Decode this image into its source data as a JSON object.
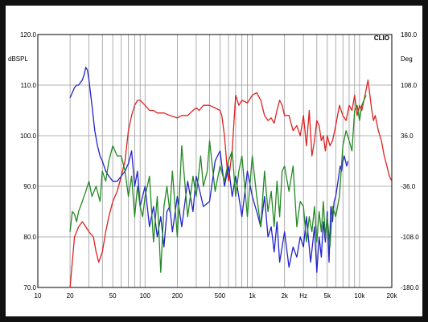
{
  "chart_data": {
    "type": "line",
    "title": "",
    "brand": "CLIO",
    "xlabel": "Hz",
    "ylabel_left": "dBSPL",
    "ylabel_right": "Deg",
    "x_scale": "log",
    "xlim": [
      10,
      20000
    ],
    "ylim_left": [
      70,
      120
    ],
    "ylim_right": [
      -180,
      180
    ],
    "x_tick_labels": [
      {
        "value": 10,
        "label": "10"
      },
      {
        "value": 20,
        "label": "20"
      },
      {
        "value": 50,
        "label": "50"
      },
      {
        "value": 100,
        "label": "100"
      },
      {
        "value": 200,
        "label": "200"
      },
      {
        "value": 500,
        "label": "500"
      },
      {
        "value": 1000,
        "label": "1k"
      },
      {
        "value": 2000,
        "label": "2k"
      },
      {
        "value": 5000,
        "label": "5k"
      },
      {
        "value": 10000,
        "label": "10k"
      },
      {
        "value": 20000,
        "label": "20k"
      }
    ],
    "y_left_ticks": [
      {
        "value": 120,
        "label": "120.0"
      },
      {
        "value": 110,
        "label": "110.0"
      },
      {
        "value": 100,
        "label": "100.0"
      },
      {
        "value": 90,
        "label": "90.0"
      },
      {
        "value": 80,
        "label": "80.0"
      },
      {
        "value": 70,
        "label": "70.0"
      }
    ],
    "y_right_ticks": [
      {
        "value": 180,
        "label": "180.0"
      },
      {
        "value": 108,
        "label": "108.0"
      },
      {
        "value": 36,
        "label": "36.0"
      },
      {
        "value": -36,
        "label": "-36.0"
      },
      {
        "value": -108,
        "label": "-108.0"
      },
      {
        "value": -180,
        "label": "-180.0"
      }
    ],
    "grid": true,
    "series": [
      {
        "color": "#dd2222",
        "axis": "left",
        "x": [
          20,
          22,
          24,
          26,
          28,
          30,
          33,
          35,
          37,
          40,
          43,
          46,
          50,
          55,
          60,
          65,
          70,
          75,
          80,
          85,
          90,
          100,
          110,
          120,
          130,
          150,
          170,
          200,
          220,
          250,
          280,
          300,
          320,
          350,
          400,
          450,
          500,
          520,
          550,
          580,
          600,
          650,
          700,
          750,
          800,
          900,
          1000,
          1100,
          1200,
          1300,
          1400,
          1500,
          1600,
          1700,
          1800,
          1900,
          2000,
          2200,
          2400,
          2600,
          2800,
          3000,
          3200,
          3400,
          3600,
          3800,
          4000,
          4200,
          4400,
          4600,
          4800,
          5000,
          5300,
          5600,
          6000,
          6500,
          7000,
          7500,
          8000,
          8500,
          9000,
          9500,
          10000,
          10500,
          11000,
          11500,
          12000,
          12500,
          13000,
          13500,
          14000,
          15000,
          16000,
          17000,
          18000,
          19000,
          20000
        ],
        "values": [
          70,
          80,
          82,
          83,
          82,
          81,
          80,
          77,
          75,
          77,
          81,
          84,
          87,
          89,
          92,
          95,
          101,
          104,
          106,
          107,
          107,
          106,
          105,
          105,
          104.5,
          104.5,
          104,
          103.5,
          104,
          104,
          105,
          105.5,
          105,
          106,
          106,
          105.5,
          105,
          104,
          100,
          94,
          91,
          97,
          108,
          106,
          107,
          106.5,
          108,
          108.5,
          107,
          104,
          103,
          103.5,
          102.5,
          105,
          107,
          106,
          104,
          104,
          101,
          102,
          100,
          104,
          98,
          105,
          96,
          99,
          103,
          102,
          99,
          100,
          97,
          100,
          98,
          99,
          102,
          106,
          104,
          103,
          106,
          105,
          108,
          104,
          106,
          105,
          107,
          109,
          111,
          108,
          105,
          103,
          104,
          101,
          99,
          96,
          94,
          92,
          91
        ]
      },
      {
        "color": "#2222cc",
        "axis": "left",
        "x": [
          20,
          21,
          22,
          23,
          24,
          25,
          26,
          27,
          28,
          29,
          30,
          32,
          34,
          36,
          38,
          40,
          43,
          46,
          50,
          55,
          60,
          65,
          70,
          75,
          80,
          85,
          90,
          100,
          110,
          120,
          130,
          140,
          150,
          160,
          170,
          180,
          200,
          220,
          250,
          280,
          300,
          350,
          400,
          450,
          500,
          550,
          600,
          650,
          700,
          800,
          900,
          1000,
          1100,
          1200,
          1300,
          1400,
          1500,
          1600,
          1700,
          1800,
          2000,
          2200,
          2400,
          2600,
          2800,
          3000,
          3200,
          3500,
          3800,
          4000,
          4200,
          4400,
          4600,
          4800,
          5000,
          5200,
          5400,
          5600,
          5800,
          6000,
          6200,
          6400,
          6600,
          6800,
          7000,
          7200,
          7400,
          7600,
          7800
        ],
        "values": [
          107.5,
          108.5,
          109.5,
          110,
          110,
          110.5,
          111,
          112,
          113.5,
          113,
          111,
          106,
          101,
          98,
          96,
          95,
          93,
          92,
          91,
          91,
          92,
          93,
          94.5,
          97,
          90,
          93,
          86,
          90,
          82,
          86,
          80,
          84,
          78,
          85,
          86,
          81,
          88,
          82,
          91,
          85,
          92,
          86,
          87,
          95,
          97,
          90,
          94,
          88,
          92,
          84,
          93,
          88,
          85,
          82,
          88,
          80,
          82,
          77,
          83,
          75,
          81,
          74,
          78,
          76,
          80,
          78,
          84,
          75,
          82,
          73,
          80,
          76,
          83,
          79,
          85,
          75,
          86,
          83,
          87,
          88,
          90,
          92,
          94,
          93,
          95,
          96,
          95,
          94,
          95
        ]
      },
      {
        "color": "#228822",
        "axis": "left",
        "x": [
          20,
          21,
          22,
          23,
          24,
          26,
          28,
          30,
          32,
          35,
          38,
          40,
          43,
          46,
          50,
          55,
          60,
          65,
          70,
          75,
          80,
          85,
          90,
          95,
          100,
          110,
          120,
          130,
          140,
          150,
          160,
          170,
          180,
          200,
          220,
          250,
          280,
          300,
          330,
          350,
          380,
          400,
          450,
          500,
          550,
          600,
          650,
          700,
          750,
          800,
          900,
          1000,
          1100,
          1200,
          1300,
          1400,
          1500,
          1600,
          1700,
          1800,
          1900,
          2000,
          2200,
          2400,
          2600,
          2800,
          3000,
          3200,
          3400,
          3600,
          3800,
          4000,
          4200,
          4400,
          4600,
          4800,
          5000,
          5300,
          5600,
          6000,
          6500,
          7000,
          7500,
          8000,
          8500,
          9000,
          9500,
          10000,
          10500,
          11000,
          11500
        ],
        "values": [
          81,
          85,
          84.5,
          83,
          85,
          87,
          89,
          91,
          88,
          90,
          87,
          93,
          91,
          95,
          98,
          96,
          96,
          93,
          88,
          92,
          84,
          90,
          86,
          84,
          88,
          92,
          79,
          88,
          73,
          86,
          90,
          85,
          93,
          80,
          98,
          84,
          92,
          88,
          96,
          90,
          93,
          99,
          89,
          94,
          91,
          95,
          97,
          88,
          93,
          96,
          84,
          96,
          88,
          82,
          93,
          85,
          89,
          82,
          91,
          84,
          93,
          94,
          89,
          94,
          82,
          87,
          86,
          79,
          84,
          81,
          86,
          79,
          85,
          81,
          87,
          80,
          84,
          78,
          86,
          84,
          88,
          98,
          101,
          99,
          97,
          105,
          106,
          103,
          106,
          107,
          108
        ]
      }
    ]
  }
}
